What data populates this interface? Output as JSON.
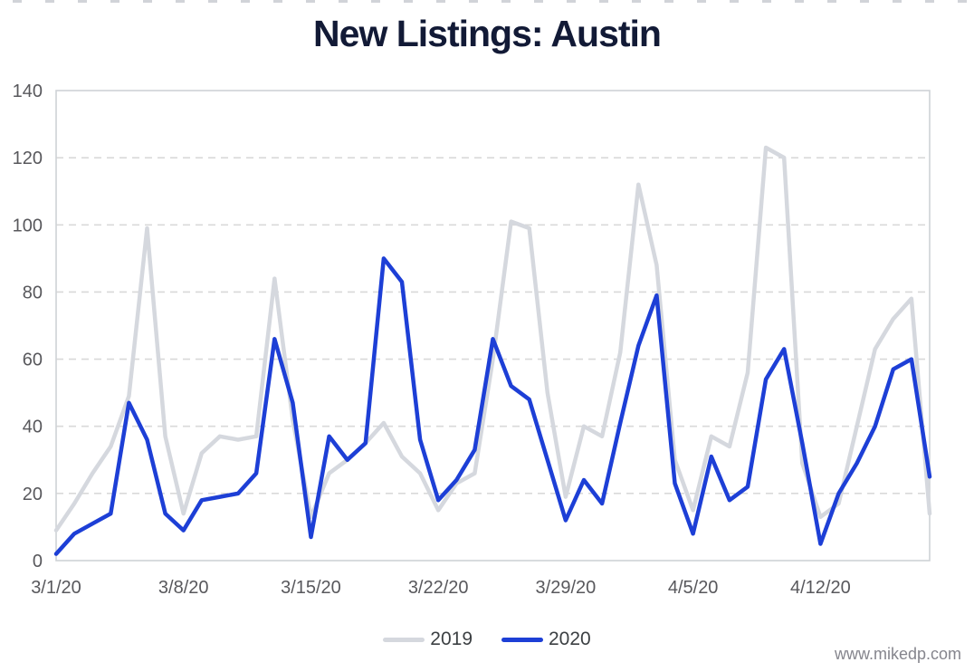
{
  "title": "New Listings: Austin",
  "watermark": "www.mikedp.com",
  "legend": [
    {
      "label": "2019",
      "color": "#d5d8de"
    },
    {
      "label": "2020",
      "color": "#1d3fd6"
    }
  ],
  "chart_data": {
    "type": "line",
    "title": "New Listings: Austin",
    "xlabel": "",
    "ylabel": "",
    "ylim": [
      0,
      140
    ],
    "yticks": [
      0,
      20,
      40,
      60,
      80,
      100,
      120,
      140
    ],
    "grid": "horizontal-dashed",
    "legend_position": "bottom-center",
    "x_tick_labels": [
      "3/1/20",
      "3/8/20",
      "3/15/20",
      "3/22/20",
      "3/29/20",
      "4/5/20",
      "4/12/20"
    ],
    "x_tick_day_indices": [
      0,
      7,
      14,
      21,
      28,
      35,
      42
    ],
    "categories": [
      "3/1/20",
      "3/2/20",
      "3/3/20",
      "3/4/20",
      "3/5/20",
      "3/6/20",
      "3/7/20",
      "3/8/20",
      "3/9/20",
      "3/10/20",
      "3/11/20",
      "3/12/20",
      "3/13/20",
      "3/14/20",
      "3/15/20",
      "3/16/20",
      "3/17/20",
      "3/18/20",
      "3/19/20",
      "3/20/20",
      "3/21/20",
      "3/22/20",
      "3/23/20",
      "3/24/20",
      "3/25/20",
      "3/26/20",
      "3/27/20",
      "3/28/20",
      "3/29/20",
      "3/30/20",
      "3/31/20",
      "4/1/20",
      "4/2/20",
      "4/3/20",
      "4/4/20",
      "4/5/20",
      "4/6/20",
      "4/7/20",
      "4/8/20",
      "4/9/20",
      "4/10/20",
      "4/11/20",
      "4/12/20",
      "4/13/20",
      "4/14/20",
      "4/15/20",
      "4/16/20",
      "4/17/20",
      "4/18/20"
    ],
    "series": [
      {
        "name": "2019",
        "color": "#d5d8de",
        "values": [
          9,
          17,
          26,
          34,
          49,
          99,
          37,
          14,
          32,
          37,
          36,
          37,
          84,
          42,
          13,
          26,
          30,
          35,
          41,
          31,
          26,
          15,
          23,
          26,
          60,
          101,
          99,
          50,
          19,
          40,
          37,
          62,
          112,
          88,
          30,
          15,
          37,
          34,
          56,
          123,
          120,
          29,
          13,
          17,
          40,
          63,
          72,
          78,
          14
        ]
      },
      {
        "name": "2020",
        "color": "#1d3fd6",
        "values": [
          2,
          8,
          11,
          14,
          47,
          36,
          14,
          9,
          18,
          19,
          20,
          26,
          66,
          47,
          7,
          37,
          30,
          35,
          90,
          83,
          36,
          18,
          24,
          33,
          66,
          52,
          48,
          30,
          12,
          24,
          17,
          41,
          64,
          79,
          23,
          8,
          31,
          18,
          22,
          54,
          63,
          35,
          5,
          20,
          29,
          40,
          57,
          60,
          25
        ]
      }
    ],
    "axis_text_color": "#58585c",
    "gridline_color": "#d9d9d9",
    "plot_border_color": "#cfd2d6"
  }
}
